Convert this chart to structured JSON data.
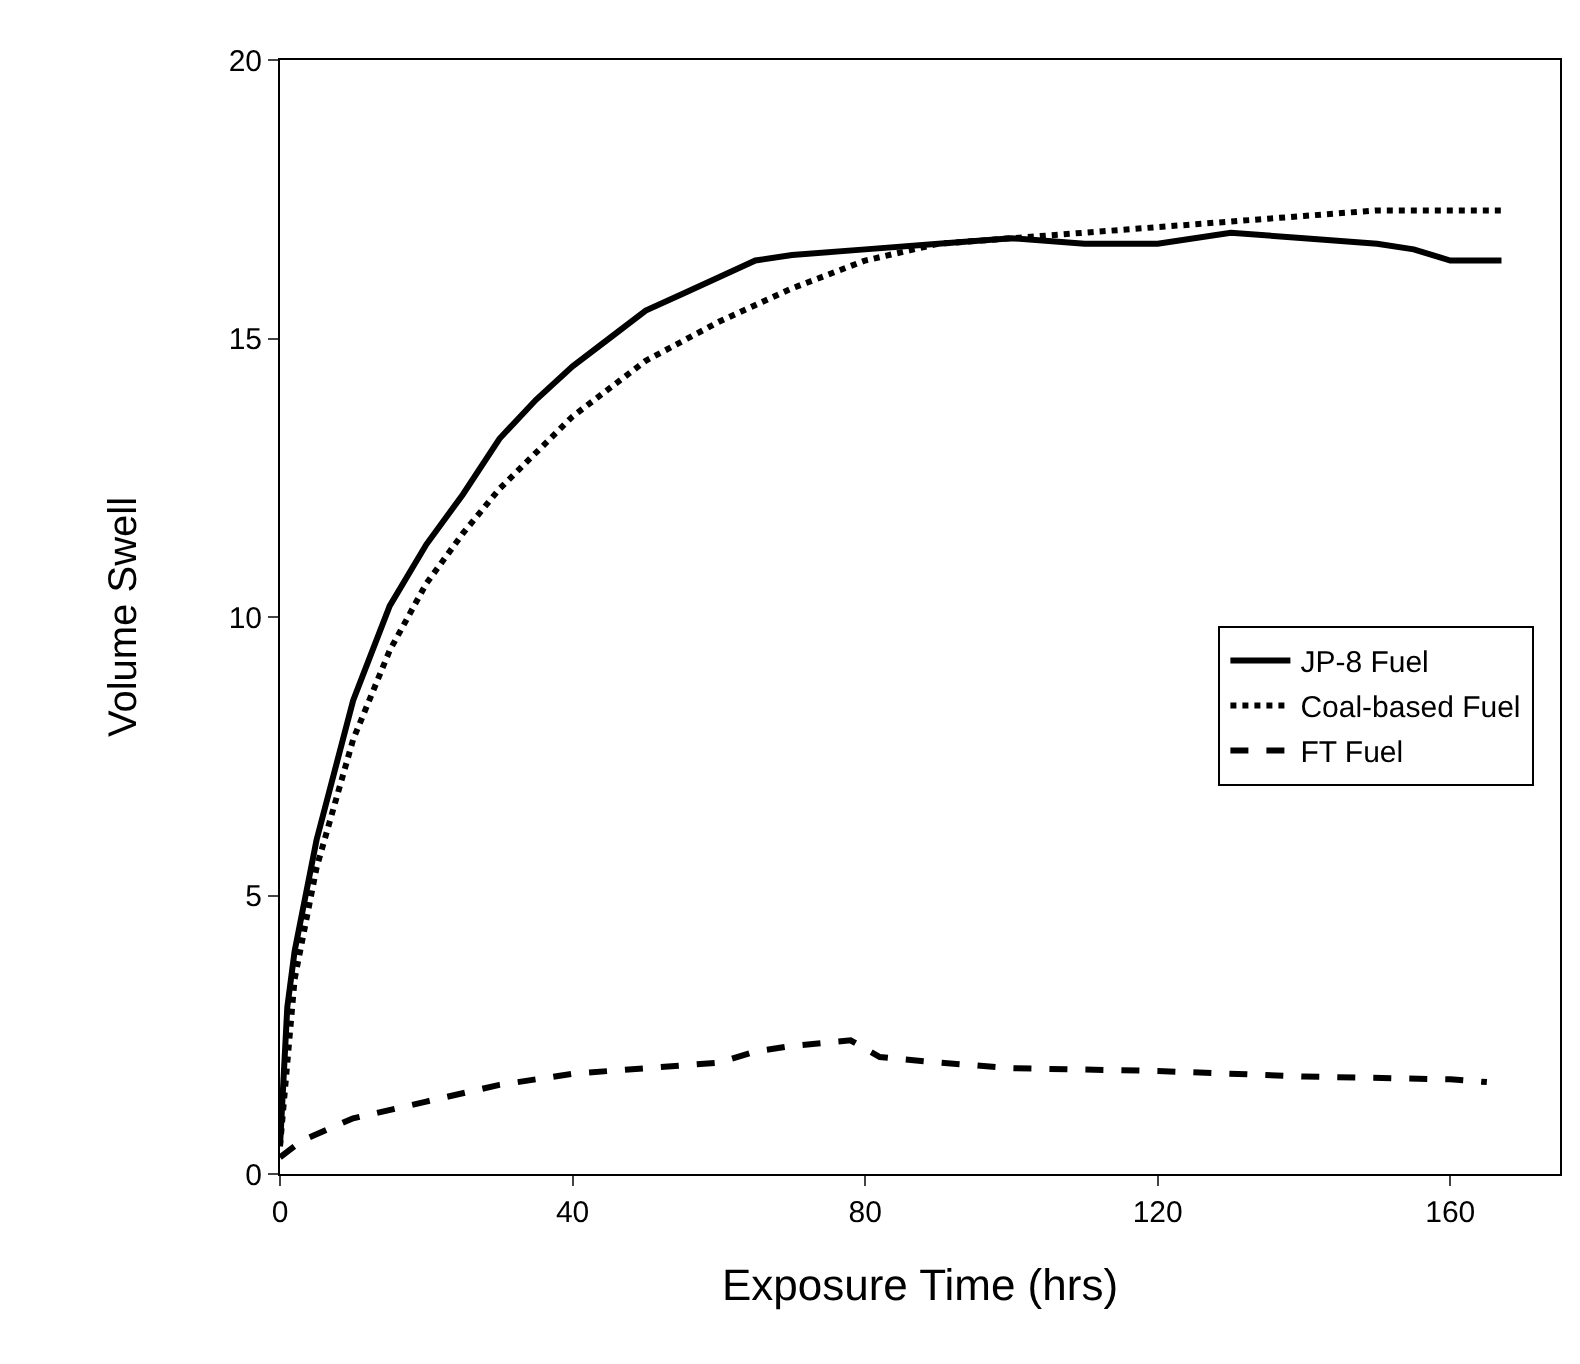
{
  "chart_data": {
    "type": "line",
    "xlabel": "Exposure Time (hrs)",
    "ylabel": "Volume Swell",
    "xlim": [
      0,
      175
    ],
    "xticks": [
      0,
      40,
      80,
      120,
      160
    ],
    "ylim": [
      0,
      20
    ],
    "yticks": [
      0,
      5,
      10,
      15,
      20
    ],
    "legend": "right",
    "marker": "none",
    "series": [
      {
        "name": "JP-8 Fuel",
        "color": "#000000",
        "line_style": "solid",
        "x": [
          0,
          1,
          2,
          5,
          10,
          15,
          20,
          25,
          30,
          35,
          40,
          45,
          50,
          55,
          60,
          65,
          70,
          80,
          90,
          100,
          110,
          120,
          130,
          140,
          150,
          155,
          160,
          167
        ],
        "values": [
          0.5,
          3,
          4,
          6,
          8.5,
          10.2,
          11.3,
          12.2,
          13.2,
          13.9,
          14.5,
          15,
          15.5,
          15.8,
          16.1,
          16.4,
          16.5,
          16.6,
          16.7,
          16.8,
          16.7,
          16.7,
          16.9,
          16.8,
          16.7,
          16.6,
          16.4,
          16.4
        ]
      },
      {
        "name": "Coal-based Fuel",
        "color": "#000000",
        "line_style": "dotted",
        "x": [
          0,
          1,
          2,
          5,
          10,
          15,
          20,
          25,
          30,
          40,
          50,
          60,
          70,
          80,
          90,
          100,
          110,
          120,
          130,
          140,
          150,
          160,
          167
        ],
        "values": [
          0.5,
          2,
          3.5,
          5.5,
          7.8,
          9.4,
          10.6,
          11.5,
          12.3,
          13.6,
          14.6,
          15.3,
          15.9,
          16.4,
          16.7,
          16.8,
          16.9,
          17.0,
          17.1,
          17.2,
          17.3,
          17.3,
          17.3
        ]
      },
      {
        "name": "FT Fuel",
        "color": "#000000",
        "line_style": "dashed",
        "x": [
          0,
          3,
          10,
          20,
          30,
          40,
          50,
          60,
          65,
          70,
          78,
          82,
          90,
          100,
          120,
          140,
          160,
          165
        ],
        "values": [
          0.3,
          0.6,
          1.0,
          1.3,
          1.6,
          1.8,
          1.9,
          2.0,
          2.2,
          2.3,
          2.4,
          2.1,
          2.0,
          1.9,
          1.85,
          1.75,
          1.7,
          1.65
        ]
      }
    ]
  }
}
